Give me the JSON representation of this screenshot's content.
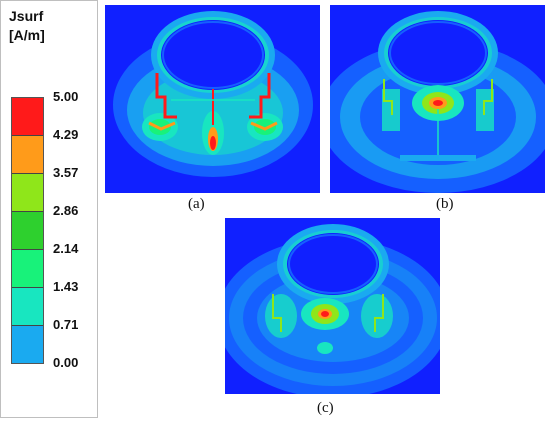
{
  "legend": {
    "title_line1": "Jsurf",
    "title_line2": "[A/m]",
    "ticks": [
      "5.00",
      "4.29",
      "3.57",
      "2.86",
      "2.14",
      "1.43",
      "0.71",
      "0.00"
    ],
    "colors": [
      "#ff1a1a",
      "#ff9b1a",
      "#8fe61a",
      "#2ed02e",
      "#18f27a",
      "#18e6c0",
      "#1aaaf0",
      "#1020ff"
    ]
  },
  "panels": {
    "a": {
      "caption": "(a)"
    },
    "b": {
      "caption": "(b)"
    },
    "c": {
      "caption": "(c)"
    }
  }
}
